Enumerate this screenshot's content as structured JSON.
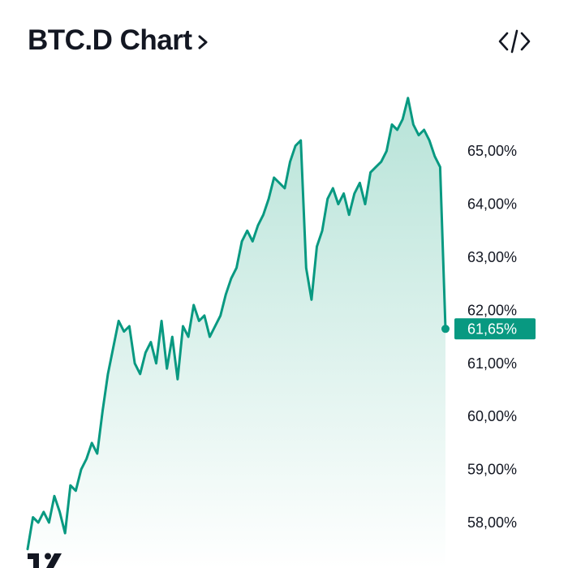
{
  "header": {
    "title": "BTC.D Chart",
    "chevron_icon": "chevron-right-icon",
    "embed_icon": "code-embed-icon"
  },
  "colors": {
    "line": "#089981",
    "fill_top": "#b7e3d8",
    "fill_bottom": "#ffffff",
    "label_bg": "#089981",
    "text": "#131722"
  },
  "brand": {
    "logo_icon": "tradingview-logo-icon"
  },
  "chart_data": {
    "type": "area",
    "title": "BTC.D Chart",
    "xlabel": "",
    "ylabel": "",
    "axis_position": "right",
    "grid": false,
    "ylim": [
      57.5,
      66.3
    ],
    "y_ticks": [
      58,
      59,
      60,
      61,
      62,
      63,
      64,
      65
    ],
    "y_tick_labels": [
      "58,00%",
      "59,00%",
      "60,00%",
      "61,00%",
      "62,00%",
      "63,00%",
      "64,00%",
      "65,00%"
    ],
    "last_value": 61.65,
    "last_value_label": "61,65%",
    "values": [
      57.5,
      58.1,
      58.0,
      58.2,
      58.0,
      58.5,
      58.2,
      57.8,
      58.7,
      58.6,
      59.0,
      59.2,
      59.5,
      59.3,
      60.1,
      60.8,
      61.3,
      61.8,
      61.6,
      61.7,
      61.0,
      60.8,
      61.2,
      61.4,
      61.0,
      61.8,
      60.9,
      61.5,
      60.7,
      61.7,
      61.5,
      62.1,
      61.8,
      61.9,
      61.5,
      61.7,
      61.9,
      62.3,
      62.6,
      62.8,
      63.3,
      63.5,
      63.3,
      63.6,
      63.8,
      64.1,
      64.5,
      64.4,
      64.3,
      64.8,
      65.1,
      65.2,
      62.8,
      62.2,
      63.2,
      63.5,
      64.1,
      64.3,
      64.0,
      64.2,
      63.8,
      64.2,
      64.4,
      64.0,
      64.6,
      64.7,
      64.8,
      65.0,
      65.5,
      65.4,
      65.6,
      66.0,
      65.5,
      65.3,
      65.4,
      65.2,
      64.9,
      64.7,
      61.65
    ]
  }
}
